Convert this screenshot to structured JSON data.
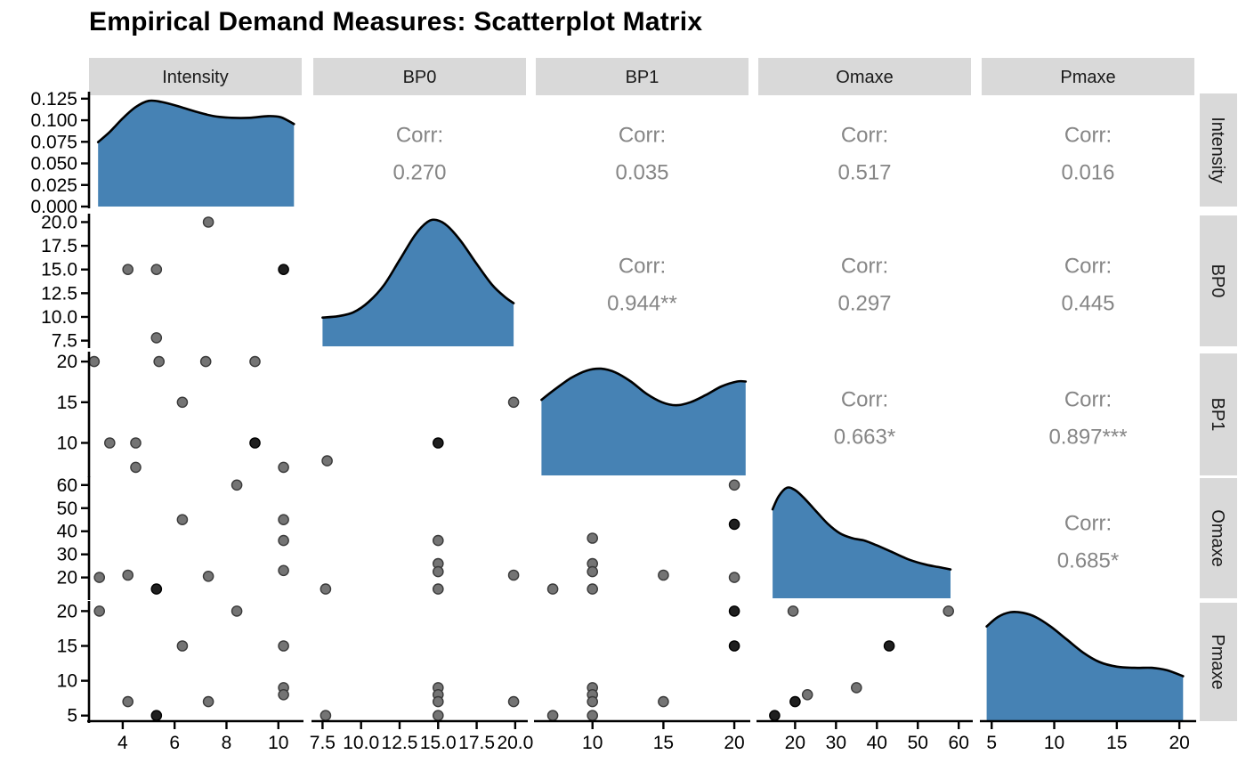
{
  "chart_data": {
    "type": "scatter",
    "subtype": "scatterplot-matrix",
    "title": "Empirical Demand Measures: Scatterplot Matrix",
    "variables": [
      "Intensity",
      "BP0",
      "BP1",
      "Omaxe",
      "Pmaxe"
    ],
    "layout_hint": {
      "diagonal": "density",
      "upper_triangle": "correlation-text",
      "lower_triangle": "scatter",
      "grid": "off",
      "column_strips_top": true,
      "row_strips_right": true
    },
    "axes": {
      "Intensity": {
        "range": [
          2.7,
          10.9
        ],
        "ticks": [
          {
            "v": 4,
            "l": "4"
          },
          {
            "v": 6,
            "l": "6"
          },
          {
            "v": 8,
            "l": "8"
          },
          {
            "v": 10,
            "l": "10"
          }
        ]
      },
      "BP0": {
        "range": [
          6.9,
          20.7
        ],
        "ticks": [
          {
            "v": 7.5,
            "l": "7.5"
          },
          {
            "v": 10,
            "l": "10.0"
          },
          {
            "v": 12.5,
            "l": "12.5"
          },
          {
            "v": 15,
            "l": "15.0"
          },
          {
            "v": 17.5,
            "l": "17.5"
          },
          {
            "v": 20,
            "l": "20.0"
          }
        ]
      },
      "BP1": {
        "range": [
          6.0,
          21.0
        ],
        "ticks": [
          {
            "v": 10,
            "l": "10"
          },
          {
            "v": 15,
            "l": "15"
          },
          {
            "v": 20,
            "l": "20"
          }
        ]
      },
      "Omaxe": {
        "range": [
          11,
          63
        ],
        "ticks": [
          {
            "v": 20,
            "l": "20"
          },
          {
            "v": 30,
            "l": "30"
          },
          {
            "v": 40,
            "l": "40"
          },
          {
            "v": 50,
            "l": "50"
          },
          {
            "v": 60,
            "l": "60"
          }
        ]
      },
      "Pmaxe": {
        "range": [
          4.2,
          21.2
        ],
        "ticks": [
          {
            "v": 5,
            "l": "5"
          },
          {
            "v": 10,
            "l": "10"
          },
          {
            "v": 15,
            "l": "15"
          },
          {
            "v": 20,
            "l": "20"
          }
        ]
      }
    },
    "density_scale": {
      "range": [
        0,
        0.131
      ],
      "ticks": [
        {
          "v": 0,
          "l": "0.000"
        },
        {
          "v": 0.025,
          "l": "0.025"
        },
        {
          "v": 0.05,
          "l": "0.050"
        },
        {
          "v": 0.075,
          "l": "0.075"
        },
        {
          "v": 0.1,
          "l": "0.100"
        },
        {
          "v": 0.125,
          "l": "0.125"
        }
      ]
    },
    "correlations": [
      {
        "row": "Intensity",
        "col": "BP0",
        "label": "Corr:",
        "value": "0.270"
      },
      {
        "row": "Intensity",
        "col": "BP1",
        "label": "Corr:",
        "value": "0.035"
      },
      {
        "row": "Intensity",
        "col": "Omaxe",
        "label": "Corr:",
        "value": "0.517"
      },
      {
        "row": "Intensity",
        "col": "Pmaxe",
        "label": "Corr:",
        "value": "0.016"
      },
      {
        "row": "BP0",
        "col": "BP1",
        "label": "Corr:",
        "value": "0.944**"
      },
      {
        "row": "BP0",
        "col": "Omaxe",
        "label": "Corr:",
        "value": "0.297"
      },
      {
        "row": "BP0",
        "col": "Pmaxe",
        "label": "Corr:",
        "value": "0.445"
      },
      {
        "row": "BP1",
        "col": "Omaxe",
        "label": "Corr:",
        "value": "0.663*"
      },
      {
        "row": "BP1",
        "col": "Pmaxe",
        "label": "Corr:",
        "value": "0.897***"
      },
      {
        "row": "Omaxe",
        "col": "Pmaxe",
        "label": "Corr:",
        "value": "0.685*"
      }
    ],
    "densities": {
      "Intensity": [
        [
          3.05,
          0.57
        ],
        [
          3.5,
          0.66
        ],
        [
          4.0,
          0.78
        ],
        [
          4.5,
          0.88
        ],
        [
          5.0,
          0.935
        ],
        [
          5.5,
          0.925
        ],
        [
          6.1,
          0.89
        ],
        [
          6.8,
          0.84
        ],
        [
          7.5,
          0.8
        ],
        [
          8.2,
          0.785
        ],
        [
          8.9,
          0.785
        ],
        [
          9.6,
          0.8
        ],
        [
          10.1,
          0.79
        ],
        [
          10.6,
          0.73
        ]
      ],
      "BP0": [
        [
          7.5,
          0.22
        ],
        [
          8.5,
          0.23
        ],
        [
          9.5,
          0.26
        ],
        [
          10.5,
          0.34
        ],
        [
          11.5,
          0.47
        ],
        [
          12.5,
          0.66
        ],
        [
          13.5,
          0.85
        ],
        [
          14.3,
          0.95
        ],
        [
          14.9,
          0.965
        ],
        [
          15.6,
          0.92
        ],
        [
          16.5,
          0.8
        ],
        [
          17.5,
          0.63
        ],
        [
          18.5,
          0.47
        ],
        [
          19.3,
          0.38
        ],
        [
          19.9,
          0.33
        ]
      ],
      "BP1": [
        [
          6.4,
          0.62
        ],
        [
          7.4,
          0.71
        ],
        [
          8.5,
          0.8
        ],
        [
          9.6,
          0.86
        ],
        [
          10.6,
          0.875
        ],
        [
          11.6,
          0.845
        ],
        [
          12.7,
          0.77
        ],
        [
          13.8,
          0.67
        ],
        [
          14.9,
          0.6
        ],
        [
          15.9,
          0.575
        ],
        [
          16.9,
          0.6
        ],
        [
          18.0,
          0.66
        ],
        [
          19.1,
          0.73
        ],
        [
          20.2,
          0.77
        ],
        [
          20.8,
          0.77
        ]
      ],
      "Omaxe": [
        [
          14.5,
          0.74
        ],
        [
          16,
          0.85
        ],
        [
          18,
          0.92
        ],
        [
          20,
          0.9
        ],
        [
          22,
          0.84
        ],
        [
          25,
          0.73
        ],
        [
          28,
          0.62
        ],
        [
          31,
          0.54
        ],
        [
          34,
          0.5
        ],
        [
          37,
          0.48
        ],
        [
          40,
          0.44
        ],
        [
          44,
          0.38
        ],
        [
          48,
          0.32
        ],
        [
          52,
          0.28
        ],
        [
          55,
          0.26
        ],
        [
          58,
          0.24
        ]
      ],
      "Pmaxe": [
        [
          4.6,
          0.8
        ],
        [
          5.5,
          0.88
        ],
        [
          6.5,
          0.92
        ],
        [
          7.5,
          0.915
        ],
        [
          8.5,
          0.88
        ],
        [
          9.7,
          0.8
        ],
        [
          11,
          0.69
        ],
        [
          12.3,
          0.58
        ],
        [
          13.6,
          0.5
        ],
        [
          15,
          0.46
        ],
        [
          16.4,
          0.45
        ],
        [
          17.8,
          0.45
        ],
        [
          19,
          0.43
        ],
        [
          20.3,
          0.38
        ]
      ]
    },
    "scatter": {
      "BP0~Intensity": [
        [
          4.2,
          15,
          0
        ],
        [
          5.3,
          15,
          0
        ],
        [
          10.2,
          15,
          1
        ],
        [
          7.3,
          20,
          0
        ],
        [
          5.3,
          7.8,
          0
        ]
      ],
      "BP1~Intensity": [
        [
          2.9,
          20,
          0
        ],
        [
          5.4,
          20,
          0
        ],
        [
          7.2,
          20,
          0
        ],
        [
          9.1,
          20,
          0
        ],
        [
          6.3,
          15,
          0
        ],
        [
          3.5,
          10,
          0
        ],
        [
          4.5,
          10,
          0
        ],
        [
          9.1,
          10,
          1
        ],
        [
          4.5,
          7,
          0
        ],
        [
          10.2,
          7,
          0
        ]
      ],
      "Omaxe~Intensity": [
        [
          3.1,
          20,
          0
        ],
        [
          4.2,
          21,
          0
        ],
        [
          5.3,
          15,
          1
        ],
        [
          7.3,
          20.5,
          0
        ],
        [
          6.3,
          45,
          0
        ],
        [
          8.4,
          60,
          0
        ],
        [
          10.2,
          45,
          0
        ],
        [
          10.2,
          36,
          0
        ],
        [
          10.2,
          23,
          0
        ]
      ],
      "Pmaxe~Intensity": [
        [
          3.1,
          20,
          0
        ],
        [
          4.2,
          7,
          0
        ],
        [
          5.3,
          5,
          1
        ],
        [
          6.3,
          15,
          0
        ],
        [
          7.3,
          7,
          0
        ],
        [
          8.4,
          20,
          0
        ],
        [
          10.2,
          15,
          0
        ],
        [
          10.2,
          9,
          0
        ],
        [
          10.2,
          8,
          0
        ]
      ],
      "BP1~BP0": [
        [
          7.8,
          7.8,
          0
        ],
        [
          15,
          10,
          1
        ],
        [
          19.9,
          15,
          0
        ]
      ],
      "Omaxe~BP0": [
        [
          7.7,
          15,
          0
        ],
        [
          15,
          36,
          0
        ],
        [
          15,
          26,
          0
        ],
        [
          15,
          22.5,
          0
        ],
        [
          15,
          15,
          0
        ],
        [
          19.9,
          21,
          0
        ]
      ],
      "Pmaxe~BP0": [
        [
          7.7,
          5,
          0
        ],
        [
          15,
          9,
          0
        ],
        [
          15,
          8,
          0
        ],
        [
          15,
          7,
          0
        ],
        [
          15,
          5,
          0
        ],
        [
          19.9,
          7,
          0
        ]
      ],
      "Omaxe~BP1": [
        [
          7.2,
          15,
          0
        ],
        [
          10,
          37,
          0
        ],
        [
          10,
          26,
          0
        ],
        [
          10,
          22.5,
          0
        ],
        [
          10,
          15,
          0
        ],
        [
          15,
          21,
          0
        ],
        [
          20,
          60,
          0
        ],
        [
          20,
          43,
          1
        ],
        [
          20,
          20,
          0
        ]
      ],
      "Pmaxe~BP1": [
        [
          7.2,
          5,
          0
        ],
        [
          10,
          9,
          0
        ],
        [
          10,
          8,
          0
        ],
        [
          10,
          7,
          0
        ],
        [
          10,
          5,
          0
        ],
        [
          15,
          7,
          0
        ],
        [
          20,
          20,
          1
        ],
        [
          20,
          15,
          1
        ]
      ],
      "Pmaxe~Omaxe": [
        [
          15,
          5,
          1
        ],
        [
          19.5,
          20,
          0
        ],
        [
          20,
          7,
          1
        ],
        [
          23,
          8,
          0
        ],
        [
          35,
          9,
          0
        ],
        [
          43,
          15,
          1
        ],
        [
          57.5,
          20,
          0
        ]
      ]
    },
    "colors": {
      "density_fill": "#4682b4",
      "density_stroke": "#000000",
      "point_fill": "#747474",
      "point_edge": "#3a3a3a",
      "point_dark_fill": "#1f1f1f",
      "strip_bg": "#d9d9d9",
      "strip_text": "#1a1a1a",
      "corr_text": "#868686",
      "axis_line": "#000000",
      "axis_text": "#000000"
    }
  }
}
